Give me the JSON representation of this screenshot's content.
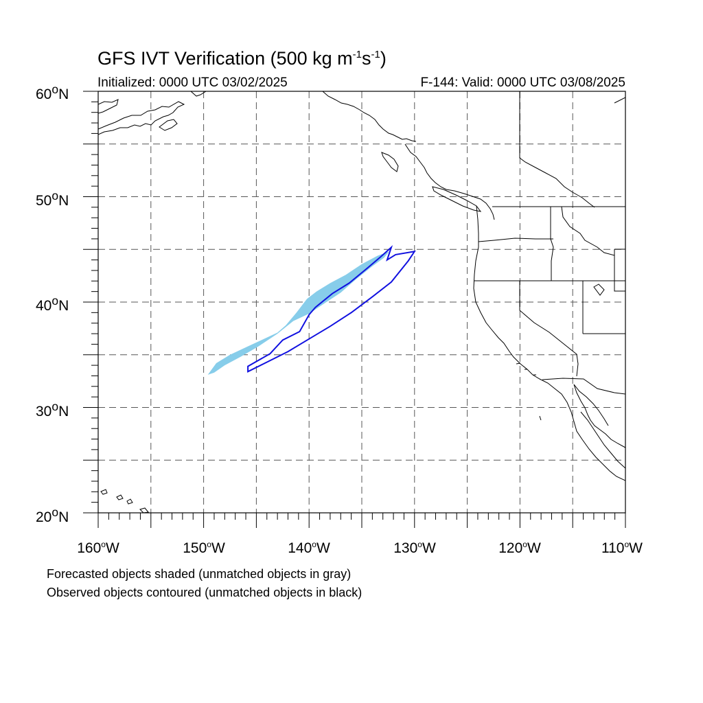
{
  "title": {
    "prefix": "GFS IVT Verification (500 kg m",
    "exp1": "-1",
    "mid": "s",
    "exp2": "-1",
    "suffix": ")"
  },
  "initialized": "Initialized: 0000 UTC 03/02/2025",
  "valid": "F-144: Valid: 0000 UTC 03/08/2025",
  "notes": {
    "forecast": "Forecasted objects shaded (unmatched objects in gray)",
    "observed": "Observed objects contoured (unmatched objects in black)"
  },
  "axes": {
    "lat_labels": [
      {
        "deg": "60",
        "hem": "N",
        "value": 60
      },
      {
        "deg": "50",
        "hem": "N",
        "value": 50
      },
      {
        "deg": "40",
        "hem": "N",
        "value": 40
      },
      {
        "deg": "30",
        "hem": "N",
        "value": 30
      },
      {
        "deg": "20",
        "hem": "N",
        "value": 20
      }
    ],
    "lon_labels": [
      {
        "deg": "160",
        "hem": "W",
        "value": -160
      },
      {
        "deg": "150",
        "hem": "W",
        "value": -150
      },
      {
        "deg": "140",
        "hem": "W",
        "value": -140
      },
      {
        "deg": "130",
        "hem": "W",
        "value": -130
      },
      {
        "deg": "120",
        "hem": "W",
        "value": -120
      },
      {
        "deg": "110",
        "hem": "W",
        "value": -110
      }
    ],
    "lon_range": [
      -160,
      -110
    ],
    "lat_range": [
      20,
      60
    ],
    "grid_spacing_deg": 5
  },
  "colors": {
    "forecast_fill": "#87cdea",
    "observed_contour": "#1010e0",
    "coast": "#000000"
  },
  "objects": {
    "forecast_shaded": [
      [
        -149.6,
        33.1
      ],
      [
        -148.8,
        34.2
      ],
      [
        -147.5,
        35.0
      ],
      [
        -145.8,
        35.8
      ],
      [
        -144.5,
        36.4
      ],
      [
        -143.0,
        37.1
      ],
      [
        -142.2,
        37.8
      ],
      [
        -141.2,
        39.0
      ],
      [
        -140.2,
        40.3
      ],
      [
        -139.3,
        41.0
      ],
      [
        -138.0,
        41.8
      ],
      [
        -136.5,
        42.6
      ],
      [
        -135.0,
        43.6
      ],
      [
        -133.5,
        44.4
      ],
      [
        -132.4,
        44.8
      ],
      [
        -132.9,
        44.2
      ],
      [
        -134.0,
        43.4
      ],
      [
        -135.5,
        42.2
      ],
      [
        -137.0,
        40.9
      ],
      [
        -138.5,
        39.9
      ],
      [
        -140.0,
        38.9
      ],
      [
        -141.5,
        38.2
      ],
      [
        -143.0,
        37.0
      ],
      [
        -144.8,
        35.8
      ],
      [
        -146.5,
        34.8
      ],
      [
        -148.0,
        34.0
      ],
      [
        -149.0,
        33.3
      ]
    ],
    "observed_contour": [
      [
        -145.8,
        33.4
      ],
      [
        -144.0,
        34.3
      ],
      [
        -142.0,
        35.3
      ],
      [
        -140.0,
        36.5
      ],
      [
        -138.0,
        37.7
      ],
      [
        -136.0,
        39.0
      ],
      [
        -134.0,
        40.5
      ],
      [
        -132.2,
        41.9
      ],
      [
        -130.6,
        43.9
      ],
      [
        -130.0,
        44.8
      ],
      [
        -131.8,
        44.5
      ],
      [
        -132.6,
        44.0
      ],
      [
        -132.2,
        45.2
      ],
      [
        -133.2,
        44.3
      ],
      [
        -134.5,
        43.2
      ],
      [
        -136.2,
        41.8
      ],
      [
        -137.8,
        40.8
      ],
      [
        -139.4,
        39.5
      ],
      [
        -140.0,
        38.8
      ],
      [
        -140.9,
        37.2
      ],
      [
        -142.5,
        36.4
      ],
      [
        -143.7,
        35.1
      ],
      [
        -145.8,
        33.9
      ]
    ]
  }
}
